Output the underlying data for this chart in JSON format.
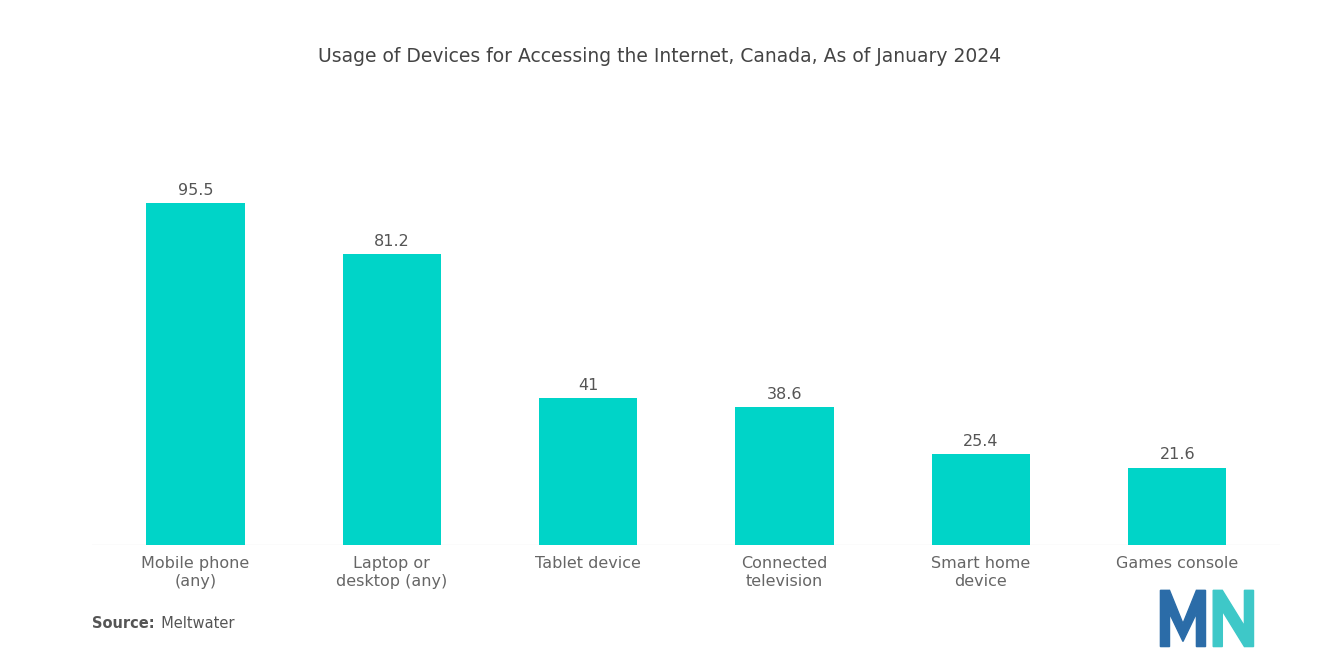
{
  "title": "Usage of Devices for Accessing the Internet, Canada, As of January 2024",
  "categories": [
    "Mobile phone\n(any)",
    "Laptop or\ndesktop (any)",
    "Tablet device",
    "Connected\ntelevision",
    "Smart home\ndevice",
    "Games console"
  ],
  "values": [
    95.5,
    81.2,
    41,
    38.6,
    25.4,
    21.6
  ],
  "bar_color": "#00D4C8",
  "background_color": "#ffffff",
  "title_fontsize": 13.5,
  "label_fontsize": 11.5,
  "value_fontsize": 11.5,
  "source_bold": "Source:",
  "source_normal": "  Meltwater",
  "ylim": [
    0,
    115
  ],
  "bar_width": 0.5,
  "logo_blue": "#2B6CA8",
  "logo_teal": "#3EC8C8"
}
